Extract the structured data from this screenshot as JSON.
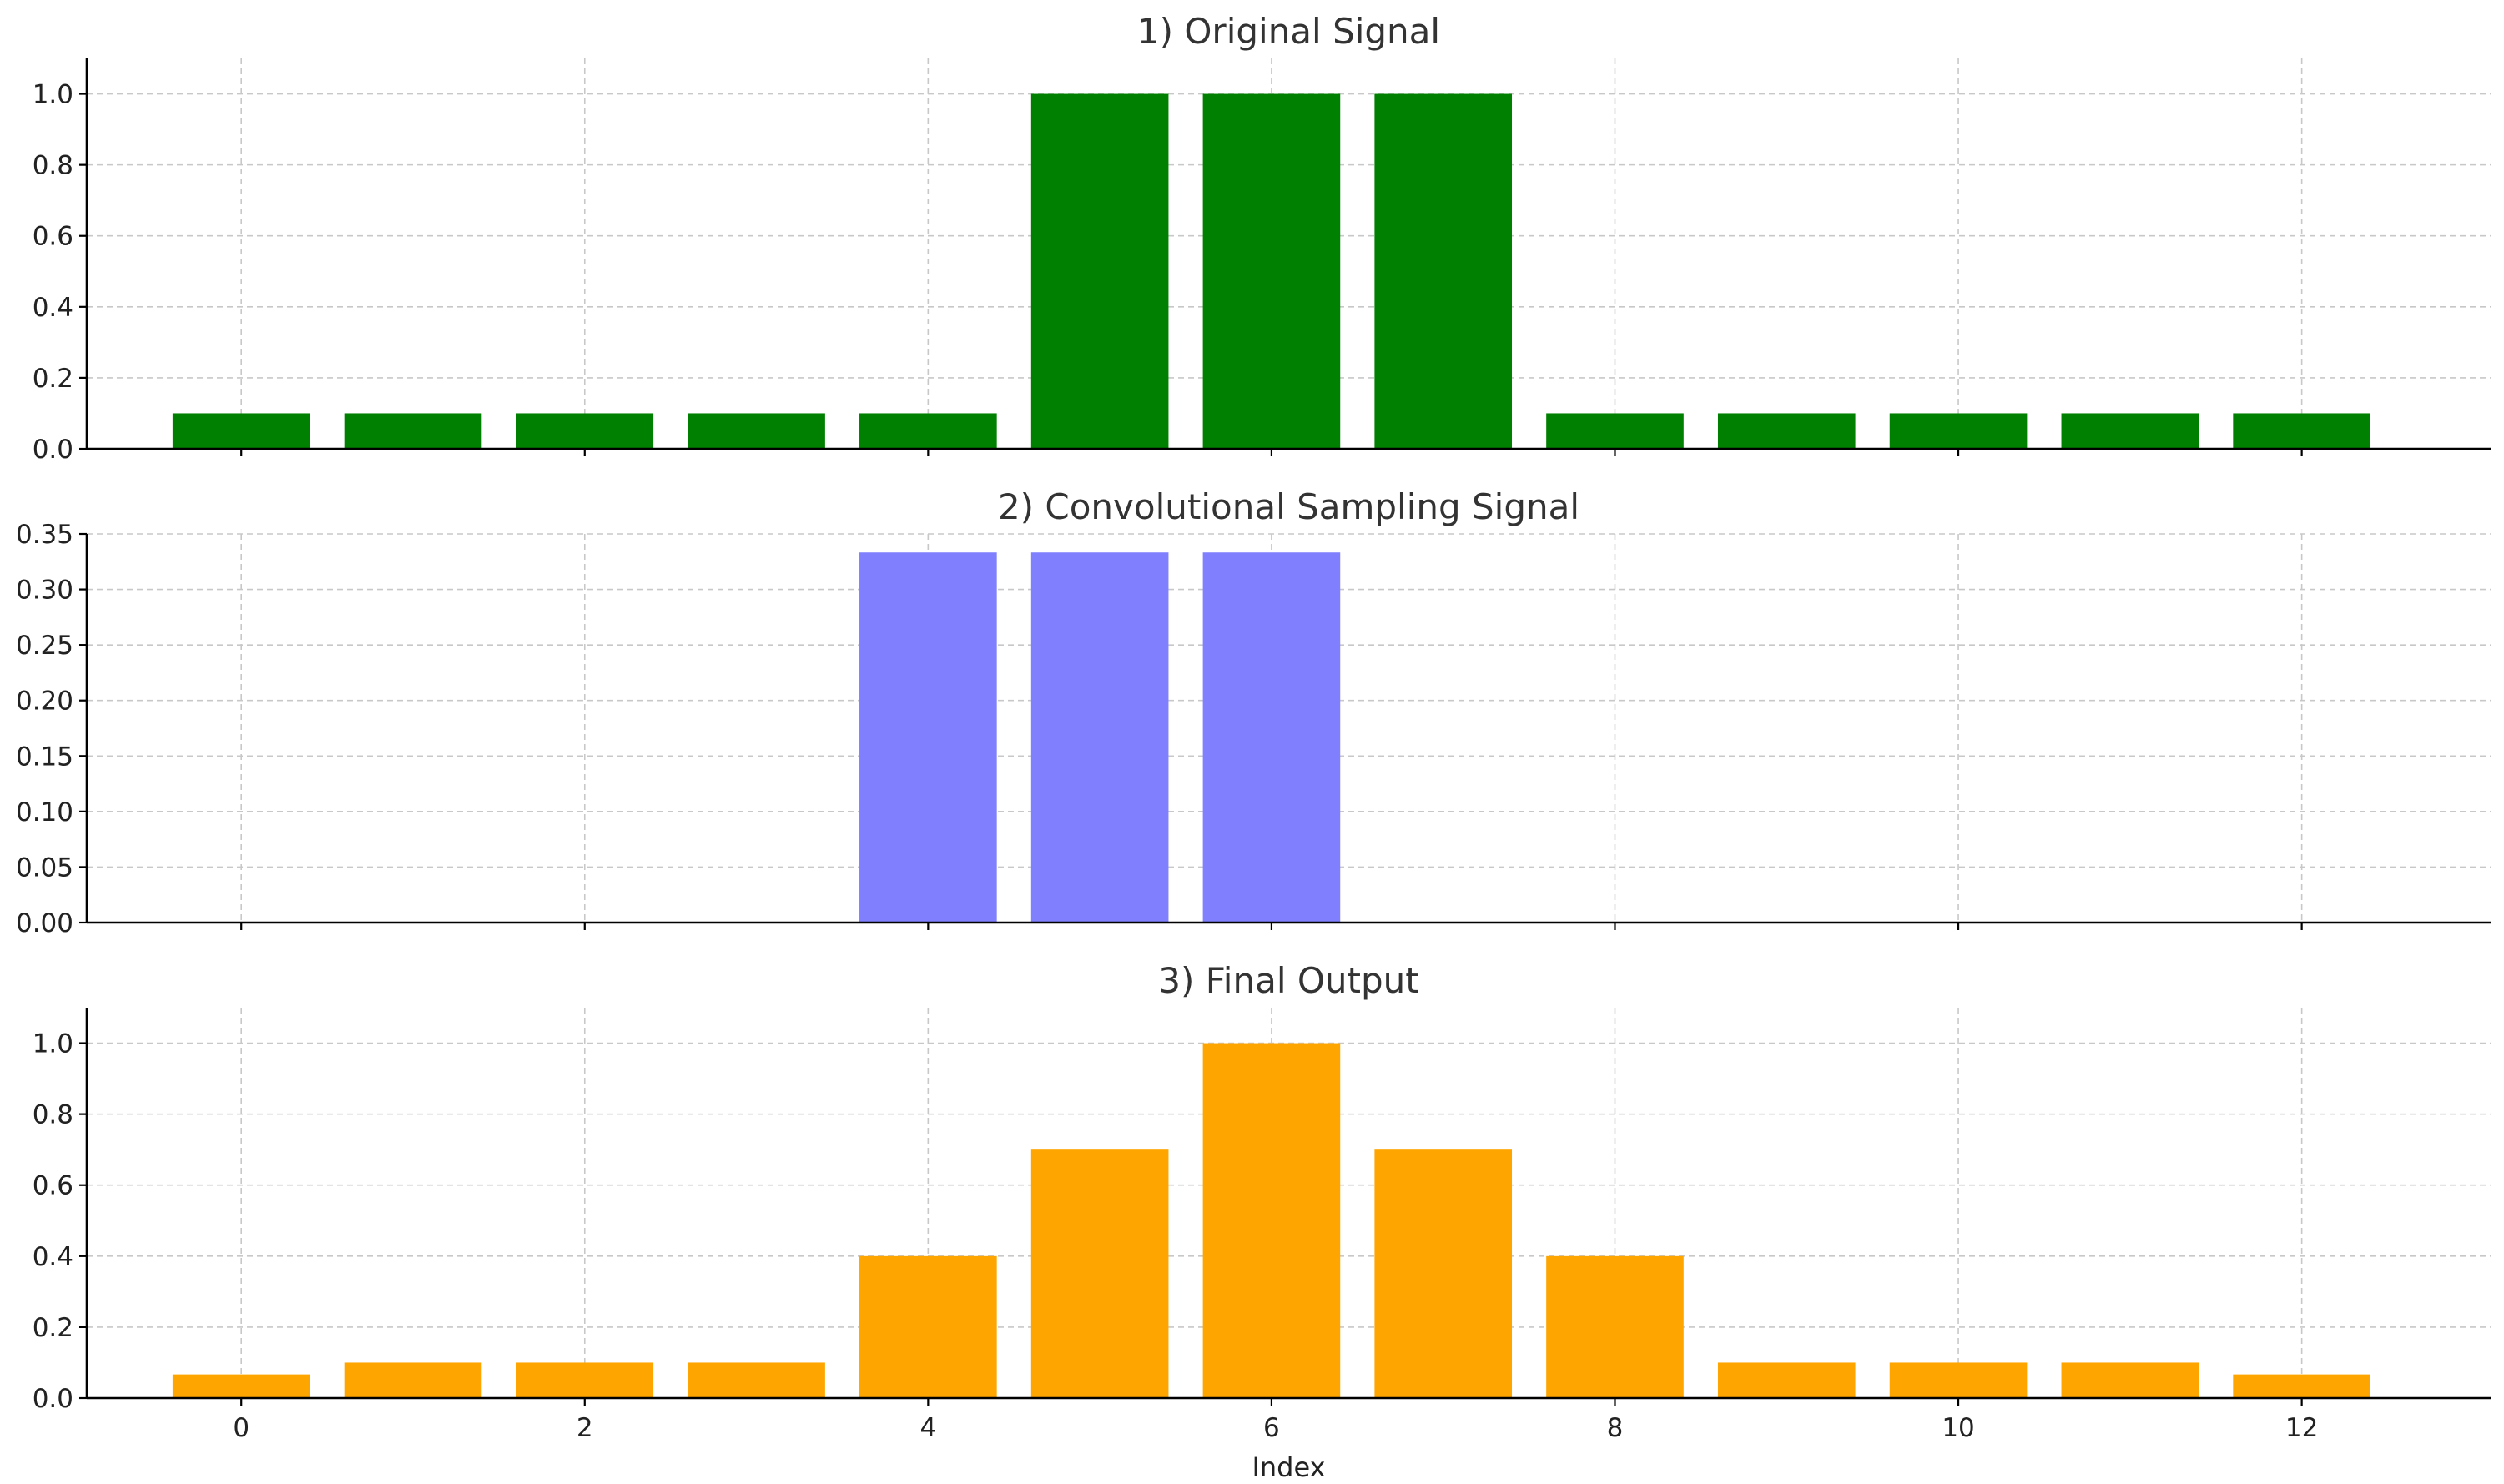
{
  "chart_data": [
    {
      "type": "bar",
      "title": "1) Original Signal",
      "color": "#008000",
      "x": [
        0,
        1,
        2,
        3,
        4,
        5,
        6,
        7,
        8,
        9,
        10,
        11,
        12
      ],
      "values": [
        0.1,
        0.1,
        0.1,
        0.1,
        0.1,
        1.0,
        1.0,
        1.0,
        0.1,
        0.1,
        0.1,
        0.1,
        0.1
      ],
      "ylim": [
        0,
        1.1
      ],
      "yticks": [
        "0.0",
        "0.2",
        "0.4",
        "0.6",
        "0.8",
        "1.0"
      ],
      "xlim": [
        -0.9,
        13.1
      ],
      "xticks": [
        0,
        2,
        4,
        6,
        8,
        10,
        12
      ],
      "show_xtick_labels": false,
      "xlabel": "",
      "ylabel": "",
      "grid": true
    },
    {
      "type": "bar",
      "title": "2) Convolutional Sampling Signal",
      "color": "#8080ff",
      "x": [
        0,
        1,
        2,
        3,
        4,
        5,
        6,
        7,
        8,
        9,
        10,
        11,
        12
      ],
      "values": [
        0,
        0,
        0,
        0,
        0.3333,
        0.3333,
        0.3333,
        0,
        0,
        0,
        0,
        0,
        0
      ],
      "ylim": [
        0,
        0.35
      ],
      "yticks": [
        "0.00",
        "0.05",
        "0.10",
        "0.15",
        "0.20",
        "0.25",
        "0.30",
        "0.35"
      ],
      "xlim": [
        -0.9,
        13.1
      ],
      "xticks": [
        0,
        2,
        4,
        6,
        8,
        10,
        12
      ],
      "show_xtick_labels": false,
      "xlabel": "",
      "ylabel": "",
      "grid": true
    },
    {
      "type": "bar",
      "title": "3) Final Output",
      "color": "#ffa500",
      "x": [
        0,
        1,
        2,
        3,
        4,
        5,
        6,
        7,
        8,
        9,
        10,
        11,
        12
      ],
      "values": [
        0.0667,
        0.1,
        0.1,
        0.1,
        0.4,
        0.7,
        1.0,
        0.7,
        0.4,
        0.1,
        0.1,
        0.1,
        0.0667
      ],
      "ylim": [
        0,
        1.1
      ],
      "yticks": [
        "0.0",
        "0.2",
        "0.4",
        "0.6",
        "0.8",
        "1.0"
      ],
      "xlim": [
        -0.9,
        13.1
      ],
      "xticks": [
        "0",
        "2",
        "4",
        "6",
        "8",
        "10",
        "12"
      ],
      "show_xtick_labels": true,
      "xlabel": "Index",
      "ylabel": "",
      "grid": true
    }
  ]
}
